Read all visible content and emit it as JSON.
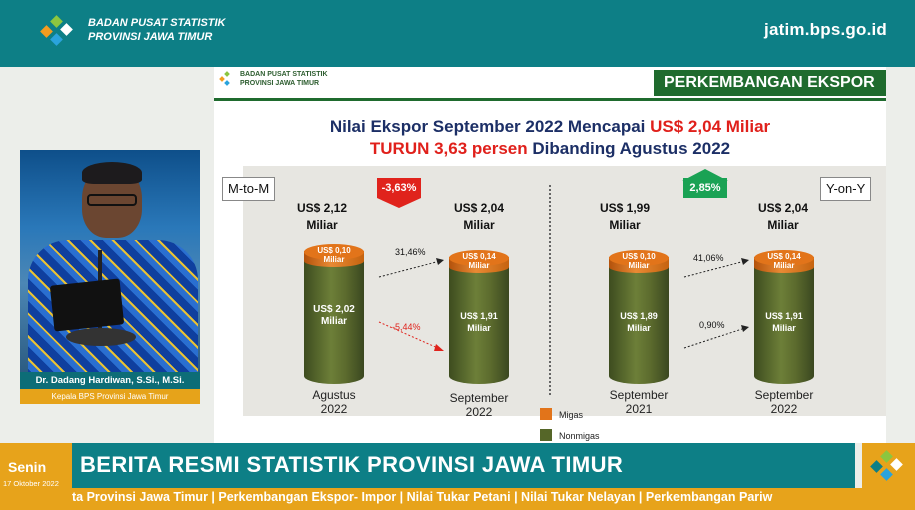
{
  "header": {
    "org_line1": "BADAN PUSAT STATISTIK",
    "org_line2": "PROVINSI JAWA TIMUR",
    "url": "jatim.bps.go.id"
  },
  "slide": {
    "org_line1": "BADAN PUSAT STATISTIK",
    "org_line2": "PROVINSI JAWA TIMUR",
    "banner": "PERKEMBANGAN EKSPOR",
    "headline1_prefix": "Nilai Ekspor September 2022 Mencapai ",
    "headline1_value": "US$ 2,04 Miliar",
    "headline2_red": "TURUN 3,63 persen",
    "headline2_rest": " Dibanding Agustus 2022",
    "mtom_label": "M-to-M",
    "yony_label": "Y-on-Y",
    "mtom_badge": "-3,63%",
    "yony_badge": "2,85%",
    "bars": [
      {
        "total": "US$ 2,12",
        "unit": "Miliar",
        "migas": "US$ 0,10",
        "migas_unit": "Miliar",
        "nonmigas": "US$ 2,02",
        "nonmigas_unit": "Miliar",
        "label1": "Agustus",
        "label2": "2022"
      },
      {
        "total": "US$ 2,04",
        "unit": "Miliar",
        "migas": "US$ 0,14",
        "migas_unit": "Miliar",
        "nonmigas": "US$ 1,91",
        "nonmigas_unit": "Miliar",
        "label1": "September",
        "label2": "2022"
      },
      {
        "total": "US$ 1,99",
        "unit": "Miliar",
        "migas": "US$ 0,10",
        "migas_unit": "Miliar",
        "nonmigas": "US$ 1,89",
        "nonmigas_unit": "Miliar",
        "label1": "September",
        "label2": "2021"
      },
      {
        "total": "US$ 2,04",
        "unit": "Miliar",
        "migas": "US$ 0,14",
        "migas_unit": "Miliar",
        "nonmigas": "US$ 1,91",
        "nonmigas_unit": "Miliar",
        "label1": "September",
        "label2": "2022"
      }
    ],
    "pct_mtom_migas": "31,46%",
    "pct_mtom_nonmigas": "-5,44%",
    "pct_yony_migas": "41,06%",
    "pct_yony_nonmigas": "0,90%",
    "legend_migas": "Migas",
    "legend_nonmigas": "Nonmigas",
    "colors": {
      "migas": "#e2741a",
      "nonmigas": "#556628",
      "up": "#1aa254",
      "down": "#e0231c"
    }
  },
  "presenter": {
    "name": "Dr. Dadang Hardiwan, S.Si., M.Si.",
    "role": "Kepala BPS Provinsi Jawa Timur"
  },
  "ticker": {
    "day": "Senin",
    "date": "17 Oktober 2022",
    "title": "BERITA RESMI STATISTIK PROVINSI JAWA TIMUR",
    "crawl": "ta Provinsi Jawa Timur | Perkembangan Ekspor- Impor | Nilai Tukar Petani | Nilai Tukar Nelayan | Perkembangan Pariw"
  }
}
